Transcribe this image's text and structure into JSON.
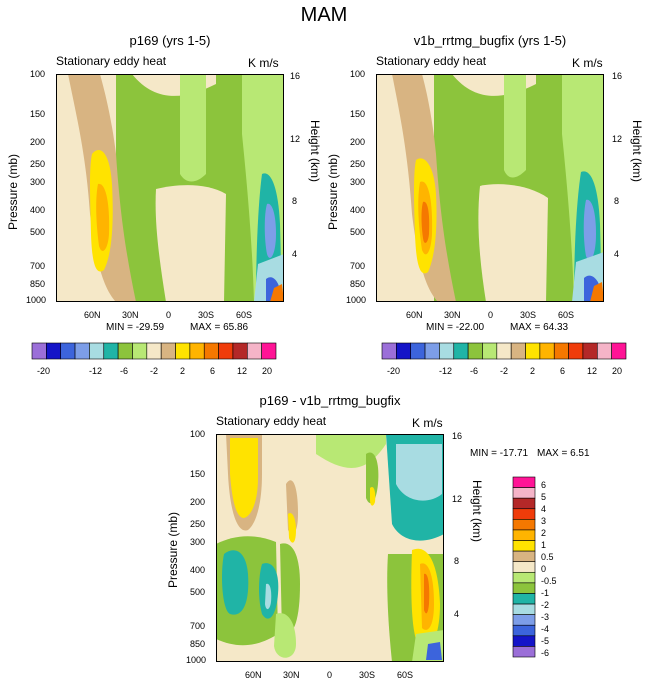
{
  "figure": {
    "title": "MAM",
    "field_label": "Stationary eddy heat",
    "units": "K m/s",
    "pressure_label": "Pressure (mb)",
    "height_label": "Height (km)"
  },
  "colors": {
    "levels_top": [
      "#9b6fd8",
      "#1414c8",
      "#3c64dc",
      "#7d9ee8",
      "#a8dce2",
      "#20b4a6",
      "#8cc43c",
      "#b8e874",
      "#f5e8c8",
      "#d8b482",
      "#ffe300",
      "#ffb400",
      "#f57800",
      "#f03c0a",
      "#b42828",
      "#f5b4c8",
      "#ff1496"
    ],
    "levels_diff": [
      "#9b6fd8",
      "#1414c8",
      "#3c64dc",
      "#7d9ee8",
      "#a8dce2",
      "#20b4a6",
      "#8cc43c",
      "#b8e874",
      "#f5e8c8",
      "#d8b482",
      "#ffe300",
      "#ffb400",
      "#f57800",
      "#f03c0a",
      "#b42828",
      "#f5b4c8",
      "#ff1496"
    ]
  },
  "chart_data": [
    {
      "type": "heatmap",
      "title": "p169 (yrs 1-5)",
      "xlabel": "",
      "ylabel": "Pressure (mb)",
      "y2label": "Height (km)",
      "x_ticks": [
        "60N",
        "30N",
        "0",
        "30S",
        "60S"
      ],
      "y_ticks": [
        "100",
        "150",
        "200",
        "250",
        "300",
        "400",
        "500",
        "700",
        "850",
        "1000"
      ],
      "y2_ticks": [
        "16",
        "12",
        "8",
        "4"
      ],
      "min": -29.59,
      "max": 65.86,
      "min_text": "MIN = -29.59",
      "max_text": "MAX =  65.86",
      "colorbar_labels": [
        "-20",
        "-12",
        "-6",
        "-2",
        "2",
        "6",
        "12",
        "20"
      ]
    },
    {
      "type": "heatmap",
      "title": "v1b_rrtmg_bugfix (yrs 1-5)",
      "xlabel": "",
      "ylabel": "Pressure (mb)",
      "y2label": "Height (km)",
      "x_ticks": [
        "60N",
        "30N",
        "0",
        "30S",
        "60S"
      ],
      "y_ticks": [
        "100",
        "150",
        "200",
        "250",
        "300",
        "400",
        "500",
        "700",
        "850",
        "1000"
      ],
      "y2_ticks": [
        "16",
        "12",
        "8",
        "4"
      ],
      "min": -22.0,
      "max": 64.33,
      "min_text": "MIN = -22.00",
      "max_text": "MAX =  64.33",
      "colorbar_labels": [
        "-20",
        "-12",
        "-6",
        "-2",
        "2",
        "6",
        "12",
        "20"
      ]
    },
    {
      "type": "heatmap",
      "title": "p169 - v1b_rrtmg_bugfix",
      "xlabel": "",
      "ylabel": "Pressure (mb)",
      "y2label": "Height (km)",
      "x_ticks": [
        "60N",
        "30N",
        "0",
        "30S",
        "60S"
      ],
      "y_ticks": [
        "100",
        "150",
        "200",
        "250",
        "300",
        "400",
        "500",
        "700",
        "850",
        "1000"
      ],
      "y2_ticks": [
        "16",
        "12",
        "8",
        "4"
      ],
      "min": -17.71,
      "max": 6.51,
      "min_text": "MIN = -17.71",
      "max_text": "MAX =    6.51",
      "colorbar_labels": [
        "6",
        "5",
        "4",
        "3",
        "2",
        "1",
        "0.5",
        "0",
        "-0.5",
        "-1",
        "-2",
        "-3",
        "-4",
        "-5",
        "-6"
      ]
    }
  ]
}
